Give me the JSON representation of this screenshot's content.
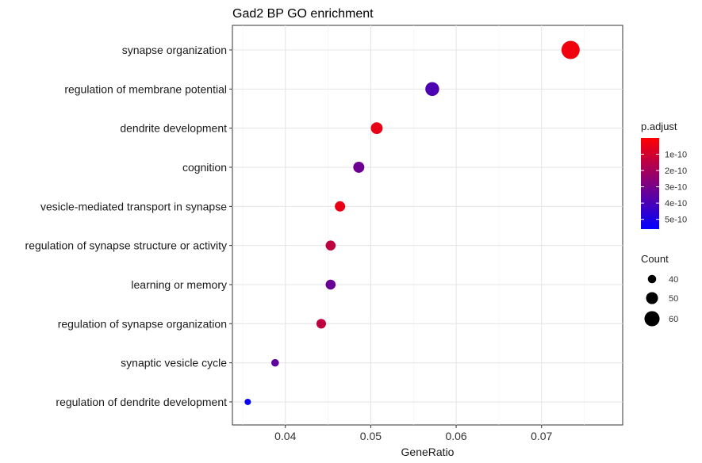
{
  "chart_data": {
    "type": "scatter",
    "title": "Gad2 BP GO enrichment",
    "xlabel": "GeneRatio",
    "ylabel": "",
    "xlim": [
      0.0338,
      0.0795
    ],
    "xticks": [
      0.04,
      0.05,
      0.06,
      0.07
    ],
    "xtick_labels": [
      "0.04",
      "0.05",
      "0.06",
      "0.07"
    ],
    "grid": true,
    "categories": [
      "synapse organization",
      "regulation of membrane potential",
      "dendrite development",
      "cognition",
      "vesicle-mediated transport in synapse",
      "regulation of synapse structure or activity",
      "learning or memory",
      "regulation of synapse organization",
      "synaptic vesicle cycle",
      "regulation of dendrite development"
    ],
    "points": [
      {
        "term": "synapse organization",
        "gene_ratio": 0.0734,
        "count": 65,
        "p_adjust": 3e-11
      },
      {
        "term": "regulation of membrane potential",
        "gene_ratio": 0.0572,
        "count": 51,
        "p_adjust": 3.9e-10
      },
      {
        "term": "dendrite development",
        "gene_ratio": 0.0507,
        "count": 45,
        "p_adjust": 5e-11
      },
      {
        "term": "cognition",
        "gene_ratio": 0.0486,
        "count": 43,
        "p_adjust": 3.2e-10
      },
      {
        "term": "vesicle-mediated transport in synapse",
        "gene_ratio": 0.0464,
        "count": 41,
        "p_adjust": 5e-11
      },
      {
        "term": "regulation of synapse structure or activity",
        "gene_ratio": 0.0453,
        "count": 40,
        "p_adjust": 1.4e-10
      },
      {
        "term": "learning or memory",
        "gene_ratio": 0.0453,
        "count": 40,
        "p_adjust": 3.3e-10
      },
      {
        "term": "regulation of synapse organization",
        "gene_ratio": 0.0442,
        "count": 39,
        "p_adjust": 1.4e-10
      },
      {
        "term": "synaptic vesicle cycle",
        "gene_ratio": 0.0388,
        "count": 34,
        "p_adjust": 3.5e-10
      },
      {
        "term": "regulation of dendrite development",
        "gene_ratio": 0.0356,
        "count": 31,
        "p_adjust": 5.4e-10
      }
    ],
    "color_legend": {
      "title": "p.adjust",
      "min": 0.0,
      "max": 5.6e-10,
      "low_color": "#ff0000",
      "high_color": "#0000ff",
      "ticks": [
        1e-10,
        2e-10,
        3e-10,
        4e-10,
        5e-10
      ],
      "tick_labels": [
        "1e-10",
        "2e-10",
        "3e-10",
        "4e-10",
        "5e-10"
      ]
    },
    "size_legend": {
      "title": "Count",
      "values": [
        40,
        50,
        60
      ],
      "labels": [
        "40",
        "50",
        "60"
      ],
      "range": [
        31,
        65
      ]
    }
  }
}
